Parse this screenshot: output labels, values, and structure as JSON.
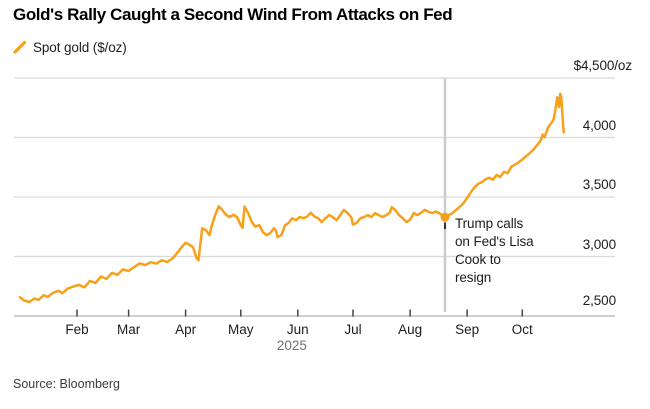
{
  "header": {
    "title": "Gold's Rally Caught a Second Wind From Attacks on Fed"
  },
  "legend": {
    "label": "Spot gold ($/oz)",
    "color": "#F9A01B"
  },
  "source": "Source: Bloomberg",
  "chart_data": {
    "type": "line",
    "title": "Gold's Rally Caught a Second Wind From Attacks on Fed",
    "series_name": "Spot gold ($/oz)",
    "line_color": "#F9A01B",
    "grid": true,
    "legend_position": "top-left",
    "x_unit": "day of year 2025",
    "y_axis": {
      "range": [
        2500,
        4500
      ],
      "ticks": [
        {
          "value": 4500,
          "label": "$4,500/oz"
        },
        {
          "value": 4000,
          "label": "4,000"
        },
        {
          "value": 3500,
          "label": "3,500"
        },
        {
          "value": 3000,
          "label": "3,000"
        },
        {
          "value": 2500,
          "label": "2,500"
        }
      ]
    },
    "x_axis": {
      "ticks": [
        {
          "label": "Feb",
          "day": 32
        },
        {
          "label": "Mar",
          "day": 60
        },
        {
          "label": "Apr",
          "day": 91
        },
        {
          "label": "May",
          "day": 121
        },
        {
          "label": "Jun",
          "day": 152
        },
        {
          "label": "Jul",
          "day": 182
        },
        {
          "label": "Aug",
          "day": 213
        },
        {
          "label": "Sep",
          "day": 244
        },
        {
          "label": "Oct",
          "day": 274
        }
      ],
      "year_label": "2025"
    },
    "annotation": {
      "day": 232,
      "value": 3331,
      "lines": [
        "Trump calls",
        "on Fed's Lisa",
        "Cook to",
        "resign"
      ]
    },
    "points": [
      [
        1,
        2658
      ],
      [
        3,
        2632
      ],
      [
        6,
        2618
      ],
      [
        9,
        2648
      ],
      [
        11,
        2635
      ],
      [
        14,
        2675
      ],
      [
        16,
        2660
      ],
      [
        19,
        2695
      ],
      [
        22,
        2712
      ],
      [
        24,
        2692
      ],
      [
        27,
        2730
      ],
      [
        30,
        2748
      ],
      [
        33,
        2762
      ],
      [
        36,
        2740
      ],
      [
        39,
        2795
      ],
      [
        42,
        2778
      ],
      [
        45,
        2832
      ],
      [
        48,
        2812
      ],
      [
        51,
        2862
      ],
      [
        54,
        2845
      ],
      [
        57,
        2892
      ],
      [
        60,
        2878
      ],
      [
        63,
        2912
      ],
      [
        66,
        2942
      ],
      [
        69,
        2928
      ],
      [
        72,
        2952
      ],
      [
        75,
        2940
      ],
      [
        78,
        2968
      ],
      [
        81,
        2955
      ],
      [
        84,
        2985
      ],
      [
        87,
        3040
      ],
      [
        89,
        3082
      ],
      [
        91,
        3115
      ],
      [
        93,
        3100
      ],
      [
        95,
        3078
      ],
      [
        97,
        2985
      ],
      [
        98,
        2968
      ],
      [
        100,
        3238
      ],
      [
        102,
        3222
      ],
      [
        104,
        3180
      ],
      [
        105,
        3248
      ],
      [
        107,
        3345
      ],
      [
        109,
        3422
      ],
      [
        111,
        3390
      ],
      [
        113,
        3350
      ],
      [
        115,
        3332
      ],
      [
        117,
        3350
      ],
      [
        119,
        3330
      ],
      [
        121,
        3262
      ],
      [
        122,
        3242
      ],
      [
        123,
        3420
      ],
      [
        125,
        3365
      ],
      [
        127,
        3290
      ],
      [
        129,
        3250
      ],
      [
        131,
        3265
      ],
      [
        133,
        3205
      ],
      [
        135,
        3180
      ],
      [
        137,
        3196
      ],
      [
        139,
        3238
      ],
      [
        140,
        3222
      ],
      [
        141,
        3162
      ],
      [
        143,
        3180
      ],
      [
        145,
        3262
      ],
      [
        147,
        3282
      ],
      [
        149,
        3322
      ],
      [
        151,
        3305
      ],
      [
        153,
        3332
      ],
      [
        155,
        3322
      ],
      [
        157,
        3335
      ],
      [
        159,
        3368
      ],
      [
        161,
        3335
      ],
      [
        163,
        3322
      ],
      [
        165,
        3290
      ],
      [
        167,
        3322
      ],
      [
        169,
        3348
      ],
      [
        171,
        3332
      ],
      [
        173,
        3305
      ],
      [
        175,
        3348
      ],
      [
        177,
        3392
      ],
      [
        179,
        3365
      ],
      [
        181,
        3330
      ],
      [
        182,
        3268
      ],
      [
        184,
        3282
      ],
      [
        186,
        3322
      ],
      [
        188,
        3332
      ],
      [
        190,
        3348
      ],
      [
        192,
        3332
      ],
      [
        194,
        3365
      ],
      [
        196,
        3348
      ],
      [
        198,
        3332
      ],
      [
        200,
        3348
      ],
      [
        202,
        3368
      ],
      [
        203,
        3415
      ],
      [
        205,
        3390
      ],
      [
        207,
        3348
      ],
      [
        209,
        3322
      ],
      [
        211,
        3290
      ],
      [
        213,
        3308
      ],
      [
        215,
        3365
      ],
      [
        217,
        3348
      ],
      [
        219,
        3368
      ],
      [
        221,
        3392
      ],
      [
        223,
        3375
      ],
      [
        225,
        3365
      ],
      [
        227,
        3378
      ],
      [
        229,
        3362
      ],
      [
        231,
        3340
      ],
      [
        232,
        3331
      ],
      [
        234,
        3348
      ],
      [
        236,
        3365
      ],
      [
        238,
        3392
      ],
      [
        240,
        3418
      ],
      [
        242,
        3448
      ],
      [
        244,
        3492
      ],
      [
        246,
        3540
      ],
      [
        248,
        3582
      ],
      [
        250,
        3610
      ],
      [
        252,
        3625
      ],
      [
        254,
        3648
      ],
      [
        256,
        3662
      ],
      [
        258,
        3645
      ],
      [
        260,
        3685
      ],
      [
        262,
        3668
      ],
      [
        264,
        3712
      ],
      [
        266,
        3700
      ],
      [
        268,
        3755
      ],
      [
        270,
        3772
      ],
      [
        272,
        3790
      ],
      [
        274,
        3815
      ],
      [
        276,
        3842
      ],
      [
        278,
        3868
      ],
      [
        280,
        3898
      ],
      [
        282,
        3935
      ],
      [
        284,
        3975
      ],
      [
        285,
        4025
      ],
      [
        286,
        4002
      ],
      [
        288,
        4085
      ],
      [
        290,
        4128
      ],
      [
        291,
        4152
      ],
      [
        292,
        4235
      ],
      [
        293,
        4338
      ],
      [
        294,
        4255
      ],
      [
        294.6,
        4368
      ],
      [
        295.2,
        4338
      ],
      [
        295.8,
        4192
      ],
      [
        296.5,
        4042
      ]
    ],
    "colors": {
      "gridline": "#d9d9d9",
      "axis_line": "#cfcfcf",
      "tick": "#454545",
      "event_line": "#cccccc",
      "annotation_marker": "#333333"
    }
  }
}
